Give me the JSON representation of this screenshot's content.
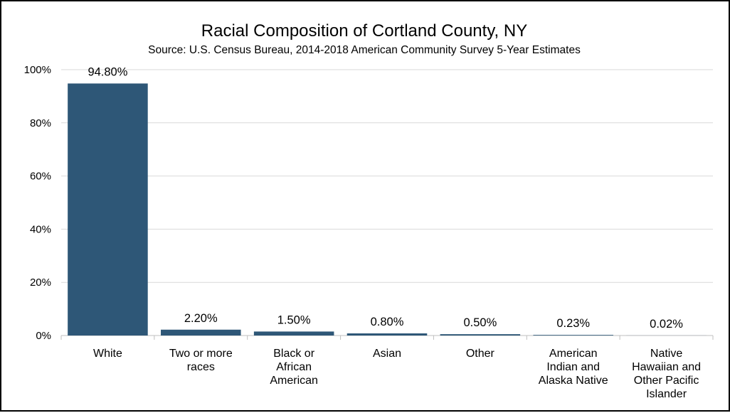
{
  "chart_data": {
    "type": "bar",
    "title": "Racial Composition of Cortland County, NY",
    "subtitle": "Source: U.S. Census Bureau, 2014-2018 American Community Survey 5-Year Estimates",
    "categories": [
      [
        "White"
      ],
      [
        "Two or more",
        "races"
      ],
      [
        "Black or",
        "African",
        "American"
      ],
      [
        "Asian"
      ],
      [
        "Other"
      ],
      [
        "American",
        "Indian and",
        "Alaska Native"
      ],
      [
        "Native",
        "Hawaiian and",
        "Other Pacific",
        "Islander"
      ]
    ],
    "values": [
      94.8,
      2.2,
      1.5,
      0.8,
      0.5,
      0.23,
      0.02
    ],
    "data_labels": [
      "94.80%",
      "2.20%",
      "1.50%",
      "0.80%",
      "0.50%",
      "0.23%",
      "0.02%"
    ],
    "yticks": [
      "0%",
      "20%",
      "40%",
      "60%",
      "80%",
      "100%"
    ],
    "ylim": [
      0,
      100
    ],
    "xlabel": "",
    "ylabel": "",
    "grid": true,
    "legend": "none",
    "bar_color": "#2e5777"
  }
}
